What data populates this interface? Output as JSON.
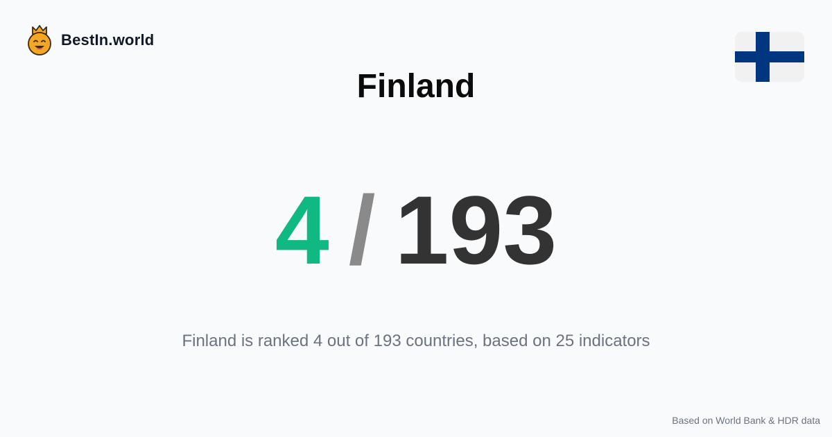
{
  "brand": {
    "name": "BestIn.world",
    "logo_icon": "crowned-smiley-icon",
    "logo_color": "#f5a623"
  },
  "flag": {
    "icon": "finland-flag-icon",
    "colors": [
      "#f1f1f1",
      "#003580"
    ]
  },
  "title": "Finland",
  "rank": {
    "value": "4",
    "separator": "/",
    "total": "193"
  },
  "summary": "Finland is ranked 4 out of 193 countries, based on 25 indicators",
  "source": "Based on World Bank & HDR data",
  "colors": {
    "background": "#f9fafb",
    "rank_value": "#10b981",
    "rank_separator": "#8a8a8a",
    "rank_total": "#333333",
    "summary_text": "#6b7280"
  }
}
